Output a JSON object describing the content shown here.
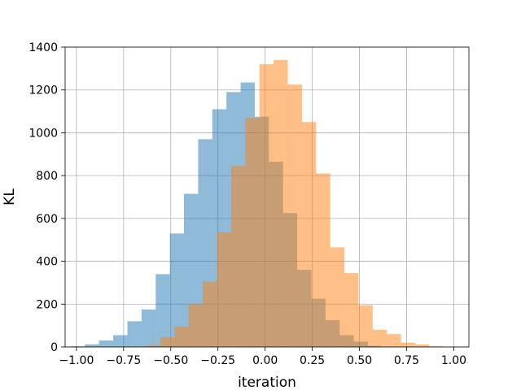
{
  "chart_data": {
    "type": "histogram",
    "title": "",
    "xlabel": "iteration",
    "ylabel": "KL",
    "xlim": [
      -1.06,
      1.08
    ],
    "ylim": [
      0,
      1400
    ],
    "grid": true,
    "legend": null,
    "xticks": [
      "−1.00",
      "−0.75",
      "−0.50",
      "−0.25",
      "0.00",
      "0.25",
      "0.50",
      "0.75",
      "1.00"
    ],
    "xtick_values": [
      -1.0,
      -0.75,
      -0.5,
      -0.25,
      0.0,
      0.25,
      0.5,
      0.75,
      1.0
    ],
    "yticks": [
      "0",
      "200",
      "400",
      "600",
      "800",
      "1000",
      "1200",
      "1400"
    ],
    "ytick_values": [
      0,
      200,
      400,
      600,
      800,
      1000,
      1200,
      1400
    ],
    "series": [
      {
        "color": "#1f77b4",
        "alpha": 0.5,
        "bin_edges": [
          -1.03,
          -0.955,
          -0.88,
          -0.805,
          -0.73,
          -0.655,
          -0.58,
          -0.505,
          -0.43,
          -0.355,
          -0.28,
          -0.205,
          -0.13,
          -0.055,
          0.02,
          0.095,
          0.17,
          0.245,
          0.32,
          0.395,
          0.47,
          0.545,
          0.62
        ],
        "counts": [
          3,
          12,
          30,
          55,
          120,
          175,
          340,
          530,
          715,
          970,
          1110,
          1190,
          1235,
          1075,
          865,
          625,
          360,
          225,
          125,
          55,
          25,
          5
        ]
      },
      {
        "color": "#ff7f0e",
        "alpha": 0.5,
        "bin_edges": [
          -0.63,
          -0.555,
          -0.48,
          -0.405,
          -0.33,
          -0.255,
          -0.18,
          -0.105,
          -0.03,
          0.045,
          0.12,
          0.195,
          0.27,
          0.345,
          0.42,
          0.495,
          0.57,
          0.645,
          0.72,
          0.795,
          0.87,
          0.945
        ],
        "counts": [
          8,
          45,
          95,
          200,
          305,
          535,
          845,
          1070,
          1320,
          1340,
          1225,
          1050,
          810,
          465,
          345,
          195,
          80,
          60,
          20,
          12,
          3
        ]
      }
    ]
  }
}
